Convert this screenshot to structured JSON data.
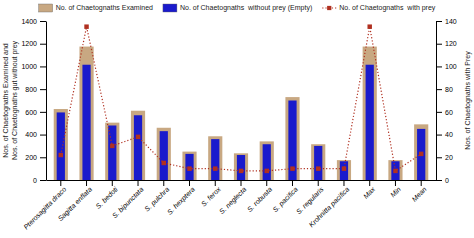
{
  "chart_data": {
    "type": "bar",
    "categories": [
      "Pterosagitta draco",
      "Sagitta enflata",
      "S. bedoti",
      "S. bipunctata",
      "S. pulchra",
      "S. hexptera",
      "S. ferox",
      "S. neglecta",
      "S. robusta",
      "S. pacifica",
      "S. regularis",
      "Krohnitta pacifica",
      "Max",
      "Min",
      "Mean"
    ],
    "series": [
      {
        "name": "No. of Chaetognaths Examined",
        "type": "bar",
        "color": "#c8a882",
        "values": [
          625,
          1175,
          505,
          610,
          460,
          250,
          385,
          235,
          340,
          730,
          315,
          175,
          1175,
          175,
          490
        ]
      },
      {
        "name": "No. of Chaetognaths  without prey (Empty)",
        "type": "bar",
        "color": "#1a1acc",
        "values": [
          595,
          1015,
          480,
          570,
          430,
          230,
          360,
          220,
          315,
          700,
          300,
          165,
          1015,
          165,
          450
        ]
      },
      {
        "name": "No. of Chaetognaths  with prey",
        "type": "line",
        "axis": "y2",
        "color": "#b03020",
        "marker": "square",
        "line_style": "dotted",
        "values": [
          22,
          135,
          30,
          38,
          15,
          10,
          10,
          8,
          8,
          10,
          10,
          10,
          135,
          8,
          23
        ]
      }
    ],
    "ylabel": "Nos. of Chaetognaths Examined and\nNos. of Chaetognaths gut without prey",
    "y2label": "Nos. of Chaetognaths with Prey",
    "ylim": [
      0,
      1400
    ],
    "yticks": [
      0,
      200,
      400,
      600,
      800,
      1000,
      1200,
      1400
    ],
    "y2lim": [
      0,
      140
    ],
    "y2ticks": [
      0,
      20,
      40,
      60,
      80,
      100,
      120,
      140
    ],
    "grid": false,
    "legend": "top"
  }
}
